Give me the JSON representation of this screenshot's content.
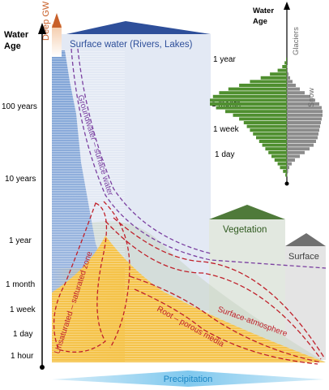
{
  "main_axis": {
    "title_line1": "Water",
    "title_line2": "Age",
    "ticks": [
      "100 years",
      "10 years",
      "1 year",
      "1 month",
      "1 week",
      "1 day",
      "1 hour"
    ],
    "deep_gw_label": "Deep GW"
  },
  "inset_histogram": {
    "title_line1": "Water",
    "title_line2": "Age",
    "ticks": [
      "1 year",
      "1 month",
      "1 week",
      "1 day"
    ],
    "series": [
      {
        "name": "Glaciers",
        "color": "#4f8f2f"
      },
      {
        "name": "Snow",
        "color": "#8c8c8c"
      }
    ]
  },
  "compartments": {
    "surface_water": "Surface water (Rivers, Lakes)",
    "vegetation": "Vegetation",
    "surface": "Surface",
    "precipitation": "Precipitation"
  },
  "interfaces": {
    "groundwater_surface": "Groundwater – surface water",
    "unsaturated_saturated": "Unsaturated – saturated zone",
    "root_porous": "Root – porous media",
    "surface_atmosphere": "Surface-atmosphere"
  },
  "colors": {
    "surface_water": "#2e4f9a",
    "groundwater": "#8faedc",
    "unsaturated": "#f5c34a",
    "vegetation": "#4f7a3a",
    "surface": "#707070",
    "precipitation": "#4fb3e6",
    "interface_red": "#c0202a",
    "interface_purple": "#7a3fa0",
    "deep_gw": "#c8602a"
  }
}
